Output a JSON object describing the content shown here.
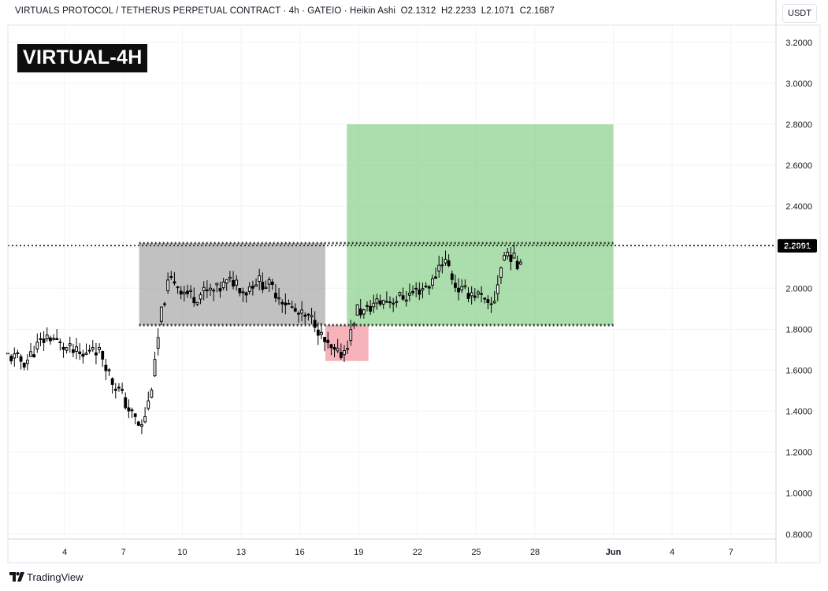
{
  "header": {
    "symbol": "VIRTUALS PROTOCOL / TETHERUS PERPETUAL CONTRACT",
    "sep": "·",
    "interval": "4h",
    "exchange": "GATEIO",
    "style": "Heikin Ashi",
    "ohlc": {
      "o": "O2.1312",
      "h": "H2.2233",
      "l": "L2.1071",
      "c": "C2.1687"
    }
  },
  "badge_text": "VIRTUAL-4H",
  "currency_button": "USDT",
  "footer": {
    "brand": "TradingView"
  },
  "colors": {
    "candle": "#000000",
    "box_range": "#a0a0a0",
    "box_stop": "#f28b95",
    "box_target": "#7fcb7f",
    "grid": "#f0f3fa",
    "price_tag_bg": "#000000",
    "price_tag_text": "#ffffff"
  },
  "chart_data": {
    "type": "candlestick",
    "title": "",
    "y_axis": {
      "side": "right",
      "ticks": [
        "3.2000",
        "3.0000",
        "2.8000",
        "2.6000",
        "2.4000",
        "2.2000",
        "2.0000",
        "1.8000",
        "1.6000",
        "1.4000",
        "1.2000",
        "1.0000",
        "0.8000"
      ],
      "tick_values": [
        3.2,
        3.0,
        2.8,
        2.6,
        2.4,
        2.2,
        2.0,
        1.8,
        1.6,
        1.4,
        1.2,
        1.0,
        0.8
      ],
      "ylim": [
        0.78,
        3.28
      ]
    },
    "x_axis": {
      "ticks": [
        "4",
        "7",
        "10",
        "13",
        "16",
        "19",
        "22",
        "25",
        "28",
        "Jun",
        "4",
        "7"
      ],
      "tick_days": [
        4,
        7,
        10,
        13,
        16,
        19,
        22,
        25,
        28,
        32,
        35,
        38
      ],
      "xlim": [
        1.1,
        40.3
      ]
    },
    "current_price": {
      "label": "2.2091",
      "value": 2.2091
    },
    "zones": [
      {
        "name": "range",
        "x_from": 7.8,
        "x_to": 17.3,
        "y_from": 1.82,
        "y_to": 2.22
      },
      {
        "name": "stop",
        "x_from": 17.3,
        "x_to": 19.5,
        "y_from": 1.645,
        "y_to": 1.82
      },
      {
        "name": "target",
        "x_from": 18.4,
        "x_to": 32.0,
        "y_from": 1.82,
        "y_to": 2.8
      }
    ],
    "levels": [
      {
        "value": 2.22,
        "x_from": 7.8,
        "x_to": 32.0,
        "style": "dotted"
      },
      {
        "value": 1.82,
        "x_from": 7.8,
        "x_to": 32.0,
        "style": "dotted"
      }
    ],
    "candles_keypoints": [
      [
        1.1,
        1.67
      ],
      [
        2.0,
        1.64
      ],
      [
        2.7,
        1.73
      ],
      [
        3.2,
        1.77
      ],
      [
        3.8,
        1.72
      ],
      [
        4.4,
        1.69
      ],
      [
        5.0,
        1.66
      ],
      [
        5.4,
        1.73
      ],
      [
        6.0,
        1.66
      ],
      [
        6.4,
        1.55
      ],
      [
        6.8,
        1.5
      ],
      [
        7.2,
        1.42
      ],
      [
        7.6,
        1.36
      ],
      [
        7.9,
        1.31
      ],
      [
        8.3,
        1.45
      ],
      [
        8.6,
        1.62
      ],
      [
        8.9,
        1.86
      ],
      [
        9.2,
        2.0
      ],
      [
        9.5,
        2.05
      ],
      [
        10.0,
        1.99
      ],
      [
        10.6,
        1.96
      ],
      [
        11.2,
        1.98
      ],
      [
        11.8,
        1.99
      ],
      [
        12.2,
        2.02
      ],
      [
        12.7,
        2.04
      ],
      [
        13.2,
        1.98
      ],
      [
        13.7,
        2.04
      ],
      [
        14.3,
        2.02
      ],
      [
        14.8,
        1.98
      ],
      [
        15.4,
        1.92
      ],
      [
        15.9,
        1.87
      ],
      [
        16.4,
        1.85
      ],
      [
        16.8,
        1.84
      ],
      [
        17.1,
        1.76
      ],
      [
        17.5,
        1.7
      ],
      [
        17.9,
        1.67
      ],
      [
        18.3,
        1.7
      ],
      [
        18.6,
        1.78
      ],
      [
        18.9,
        1.9
      ],
      [
        19.3,
        1.88
      ],
      [
        19.7,
        1.92
      ],
      [
        20.3,
        1.94
      ],
      [
        21.0,
        1.95
      ],
      [
        21.6,
        1.97
      ],
      [
        22.2,
        2.0
      ],
      [
        22.8,
        2.03
      ],
      [
        23.2,
        2.14
      ],
      [
        23.5,
        2.13
      ],
      [
        23.9,
        2.02
      ],
      [
        24.3,
        1.98
      ],
      [
        24.8,
        1.98
      ],
      [
        25.2,
        1.96
      ],
      [
        25.6,
        1.9
      ],
      [
        25.9,
        1.93
      ],
      [
        26.2,
        2.08
      ],
      [
        26.5,
        2.18
      ],
      [
        26.8,
        2.16
      ],
      [
        27.1,
        2.11
      ],
      [
        27.3,
        2.17
      ]
    ]
  }
}
